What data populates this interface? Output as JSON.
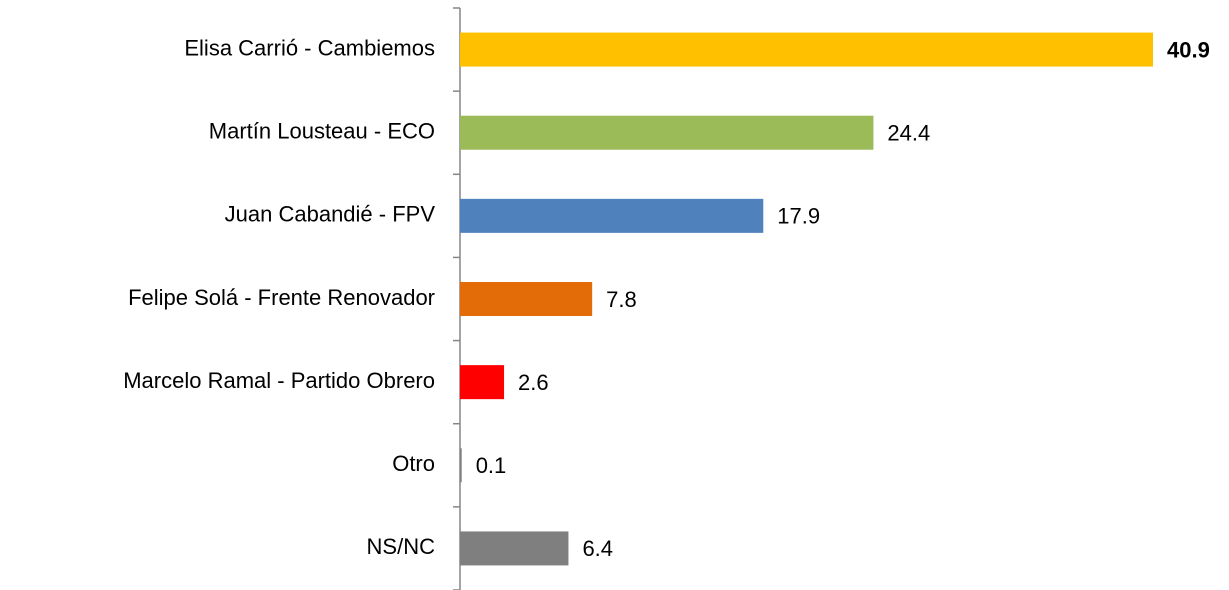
{
  "chart_data": {
    "type": "barh",
    "categories": [
      "Elisa Carrió - Cambiemos",
      "Martín Lousteau - ECO",
      "Juan Cabandié - FPV",
      "Felipe Solá - Frente Renovador",
      "Marcelo Ramal - Partido Obrero",
      "Otro",
      "NS/NC"
    ],
    "values": [
      40.9,
      24.4,
      17.9,
      7.8,
      2.6,
      0.1,
      6.4
    ],
    "colors": [
      "#ffc000",
      "#9bbb59",
      "#4f81bd",
      "#e36c09",
      "#ff0000",
      "#7f7f7f",
      "#7f7f7f"
    ],
    "highlight": 0
  }
}
